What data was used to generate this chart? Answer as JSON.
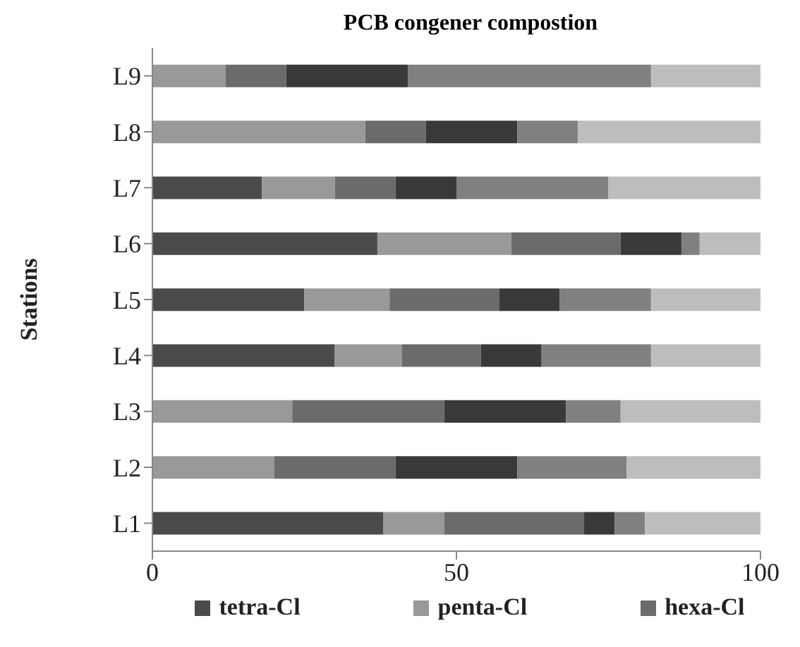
{
  "chart_data": {
    "type": "bar",
    "orientation": "horizontal",
    "stacked": true,
    "title": "PCB congener compostion",
    "ylabel": "Stations",
    "categories": [
      "L9",
      "L8",
      "L7",
      "L6",
      "L5",
      "L4",
      "L3",
      "L2",
      "L1"
    ],
    "series": [
      {
        "name": "tetra-Cl",
        "color": "#4a4a4a",
        "values": [
          0,
          0,
          18,
          37,
          25,
          30,
          0,
          0,
          38
        ]
      },
      {
        "name": "penta-Cl",
        "color": "#999999",
        "values": [
          12,
          35,
          12,
          22,
          14,
          11,
          23,
          20,
          10
        ]
      },
      {
        "name": "hexa-Cl",
        "color": "#6b6b6b",
        "values": [
          10,
          10,
          10,
          18,
          18,
          13,
          25,
          20,
          23
        ]
      },
      {
        "color": "#393939",
        "values": [
          20,
          15,
          10,
          10,
          10,
          10,
          20,
          20,
          5
        ]
      },
      {
        "color": "#808080",
        "values": [
          40,
          10,
          25,
          3,
          15,
          18,
          9,
          18,
          5
        ]
      },
      {
        "color": "#bdbdbd",
        "values": [
          18,
          30,
          25,
          10,
          18,
          18,
          23,
          22,
          19
        ]
      }
    ],
    "xlim": [
      0,
      100
    ],
    "xticks": [
      0,
      50,
      100
    ],
    "legend": "bottom"
  }
}
